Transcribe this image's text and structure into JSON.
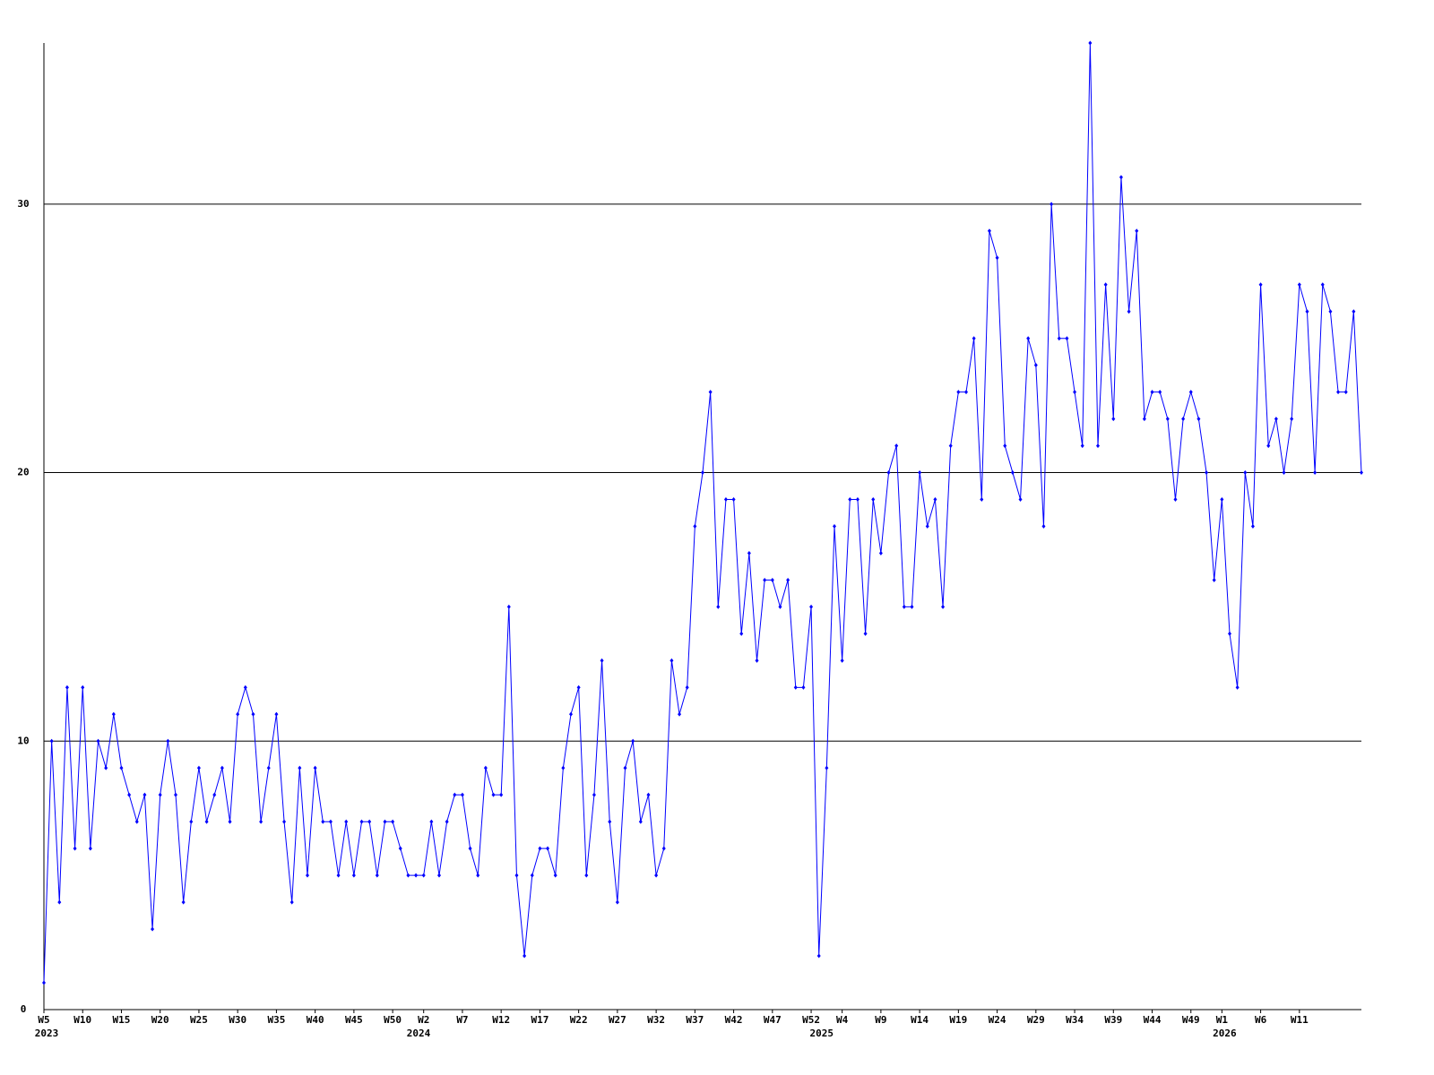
{
  "chart_data": {
    "type": "line",
    "categories": [
      "W5",
      null,
      null,
      null,
      null,
      "W10",
      null,
      null,
      null,
      null,
      "W15",
      null,
      null,
      null,
      null,
      "W20",
      null,
      null,
      null,
      null,
      "W25",
      null,
      null,
      null,
      null,
      "W30",
      null,
      null,
      null,
      null,
      "W35",
      null,
      null,
      null,
      null,
      "W40",
      null,
      null,
      null,
      null,
      "W45",
      null,
      null,
      null,
      null,
      "W50",
      null,
      null,
      null,
      "W2",
      null,
      null,
      null,
      null,
      "W7",
      null,
      null,
      null,
      null,
      "W12",
      null,
      null,
      null,
      null,
      "W17",
      null,
      null,
      null,
      null,
      "W22",
      null,
      null,
      null,
      null,
      "W27",
      null,
      null,
      null,
      null,
      "W32",
      null,
      null,
      null,
      null,
      "W37",
      null,
      null,
      null,
      null,
      "W42",
      null,
      null,
      null,
      null,
      "W47",
      null,
      null,
      null,
      null,
      "W52",
      null,
      null,
      null,
      "W4",
      null,
      null,
      null,
      null,
      "W9",
      null,
      null,
      null,
      null,
      "W14",
      null,
      null,
      null,
      null,
      "W19",
      null,
      null,
      null,
      null,
      "W24",
      null,
      null,
      null,
      null,
      "W29",
      null,
      null,
      null,
      null,
      "W34",
      null,
      null,
      null,
      null,
      "W39",
      null,
      null,
      null,
      null,
      "W44",
      null,
      null,
      null,
      null,
      "W49",
      null,
      null,
      null,
      "W1",
      null,
      null,
      null,
      null,
      "W6",
      null,
      null,
      null,
      null,
      "W11",
      null,
      null,
      null,
      null,
      null,
      null,
      null,
      null
    ],
    "year_labels": [
      "2023",
      null,
      null,
      null,
      null,
      null,
      null,
      null,
      null,
      null,
      null,
      null,
      null,
      null,
      null,
      null,
      null,
      null,
      null,
      null,
      null,
      null,
      null,
      null,
      null,
      null,
      null,
      null,
      null,
      null,
      null,
      null,
      null,
      null,
      null,
      null,
      null,
      null,
      null,
      null,
      null,
      null,
      null,
      null,
      null,
      null,
      null,
      null,
      "2024",
      null,
      null,
      null,
      null,
      null,
      null,
      null,
      null,
      null,
      null,
      null,
      null,
      null,
      null,
      null,
      null,
      null,
      null,
      null,
      null,
      null,
      null,
      null,
      null,
      null,
      null,
      null,
      null,
      null,
      null,
      null,
      null,
      null,
      null,
      null,
      null,
      null,
      null,
      null,
      null,
      null,
      null,
      null,
      null,
      null,
      null,
      null,
      null,
      null,
      null,
      null,
      "2025",
      null,
      null,
      null,
      null,
      null,
      null,
      null,
      null,
      null,
      null,
      null,
      null,
      null,
      null,
      null,
      null,
      null,
      null,
      null,
      null,
      null,
      null,
      null,
      null,
      null,
      null,
      null,
      null,
      null,
      null,
      null,
      null,
      null,
      null,
      null,
      null,
      null,
      null,
      null,
      null,
      null,
      null,
      null,
      null,
      null,
      null,
      null,
      null,
      null,
      null,
      null,
      "2026",
      null,
      null,
      null,
      null,
      null,
      null,
      null,
      null,
      null,
      null,
      null,
      null,
      null,
      null,
      null,
      null,
      null
    ],
    "series": [
      {
        "color": "#0000ff",
        "values": [
          1,
          10,
          4,
          12,
          6,
          12,
          6,
          10,
          9,
          11,
          9,
          8,
          7,
          8,
          3,
          8,
          10,
          8,
          4,
          7,
          9,
          7,
          8,
          9,
          7,
          11,
          12,
          11,
          7,
          9,
          11,
          7,
          4,
          9,
          5,
          9,
          7,
          7,
          5,
          7,
          5,
          7,
          7,
          5,
          7,
          7,
          6,
          5,
          5,
          5,
          7,
          5,
          7,
          8,
          8,
          6,
          5,
          9,
          8,
          8,
          15,
          5,
          2,
          5,
          6,
          6,
          5,
          9,
          11,
          12,
          5,
          8,
          13,
          7,
          4,
          9,
          10,
          7,
          8,
          5,
          6,
          13,
          11,
          12,
          18,
          20,
          23,
          15,
          19,
          19,
          14,
          17,
          13,
          16,
          16,
          15,
          16,
          12,
          12,
          15,
          2,
          9,
          18,
          13,
          19,
          19,
          14,
          19,
          17,
          20,
          21,
          15,
          15,
          20,
          18,
          19,
          15,
          21,
          23,
          23,
          25,
          19,
          29,
          28,
          21,
          20,
          19,
          25,
          24,
          18,
          30,
          25,
          25,
          23,
          21,
          36,
          21,
          27,
          22,
          31,
          26,
          29,
          22,
          23,
          23,
          22,
          19,
          22,
          23,
          22,
          20,
          16,
          19,
          14,
          12,
          20,
          18,
          27,
          21,
          22,
          20,
          22,
          27,
          26,
          20,
          27,
          26,
          23,
          23,
          26,
          20
        ]
      }
    ],
    "ylim": [
      0,
      36
    ],
    "yticks": [
      0,
      10,
      20,
      30
    ],
    "grid": true,
    "grid_color": "#000000"
  }
}
